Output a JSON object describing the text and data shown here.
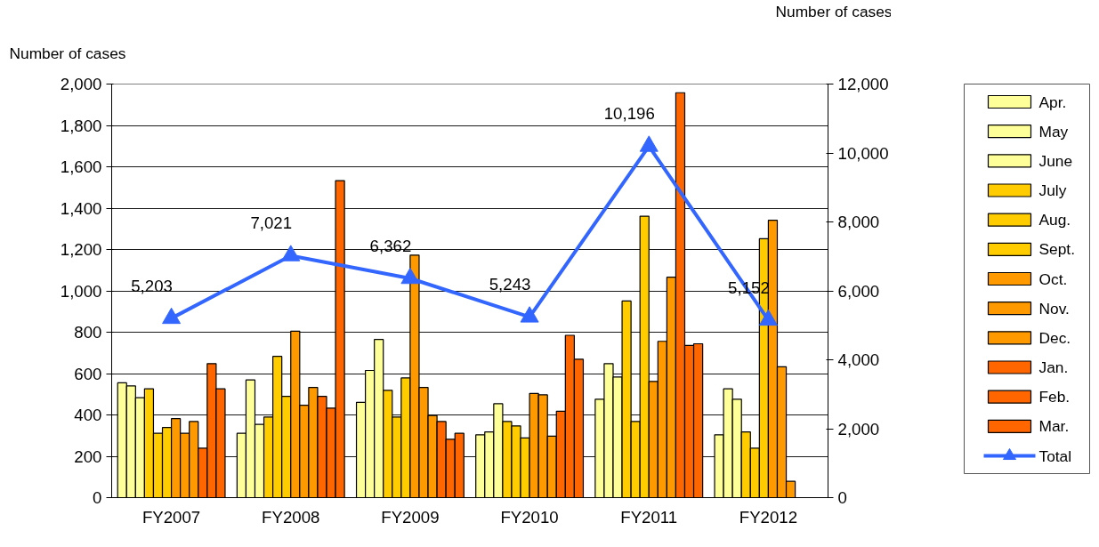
{
  "chart_data": {
    "type": "bar",
    "ylabel": "Number of cases",
    "y2label": "Number of cases",
    "categories": [
      "FY2007",
      "FY2008",
      "FY2009",
      "FY2010",
      "FY2011",
      "FY2012"
    ],
    "ylim": [
      0,
      2000
    ],
    "yticks": [
      0,
      200,
      400,
      600,
      800,
      {
        "value": 1000,
        "label": "1,000"
      },
      {
        "value": 1200,
        "label": "1,200"
      },
      {
        "value": 1400,
        "label": "1,400"
      },
      {
        "value": 1600,
        "label": "1,600"
      },
      {
        "value": 1800,
        "label": "1,800"
      },
      {
        "value": 2000,
        "label": "2,000"
      }
    ],
    "y2lim": [
      0,
      12000
    ],
    "y2ticks": [
      0,
      {
        "value": 2000,
        "label": "2,000"
      },
      {
        "value": 4000,
        "label": "4,000"
      },
      {
        "value": 6000,
        "label": "6,000"
      },
      {
        "value": 8000,
        "label": "8,000"
      },
      {
        "value": 10000,
        "label": "10,000"
      },
      {
        "value": 12000,
        "label": "12,000"
      }
    ],
    "grid": "y",
    "legend": "right",
    "series": [
      {
        "name": "Apr.",
        "color": "#ffff99",
        "values": [
          555,
          311,
          461,
          304,
          476,
          304
        ]
      },
      {
        "name": "May",
        "color": "#ffff99",
        "values": [
          540,
          569,
          615,
          318,
          648,
          526
        ]
      },
      {
        "name": "June",
        "color": "#ffff99",
        "values": [
          483,
          354,
          765,
          454,
          583,
          476
        ]
      },
      {
        "name": "July",
        "color": "#ffcc00",
        "values": [
          526,
          390,
          519,
          368,
          951,
          318
        ]
      },
      {
        "name": "Aug.",
        "color": "#ffcc00",
        "values": [
          311,
          683,
          390,
          347,
          368,
          239
        ]
      },
      {
        "name": "Sept.",
        "color": "#ffcc00",
        "values": [
          339,
          490,
          579,
          289,
          1361,
          1252
        ]
      },
      {
        "name": "Oct.",
        "color": "#ff9900",
        "values": [
          382,
          805,
          1173,
          504,
          562,
          1341
        ]
      },
      {
        "name": "Nov.",
        "color": "#ff9900",
        "values": [
          311,
          447,
          533,
          497,
          756,
          633
        ]
      },
      {
        "name": "Dec.",
        "color": "#ff9900",
        "values": [
          368,
          533,
          397,
          297,
          1066,
          79
        ]
      },
      {
        "name": "Jan.",
        "color": "#ff6600",
        "values": [
          239,
          490,
          368,
          418,
          1958,
          null
        ]
      },
      {
        "name": "Feb.",
        "color": "#ff6600",
        "values": [
          648,
          433,
          282,
          785,
          736,
          null
        ]
      },
      {
        "name": "Mar.",
        "color": "#ff6600",
        "values": [
          526,
          1533,
          311,
          669,
          744,
          null
        ]
      },
      {
        "name": "Total",
        "type": "line",
        "axis": "y2",
        "color": "#3366ff",
        "marker": "triangle",
        "values": [
          5203,
          7021,
          6362,
          5243,
          10196,
          5152
        ],
        "value_labels": [
          "5,203",
          "7,021",
          "6,362",
          "5,243",
          "10,196",
          "5,152"
        ]
      }
    ]
  }
}
